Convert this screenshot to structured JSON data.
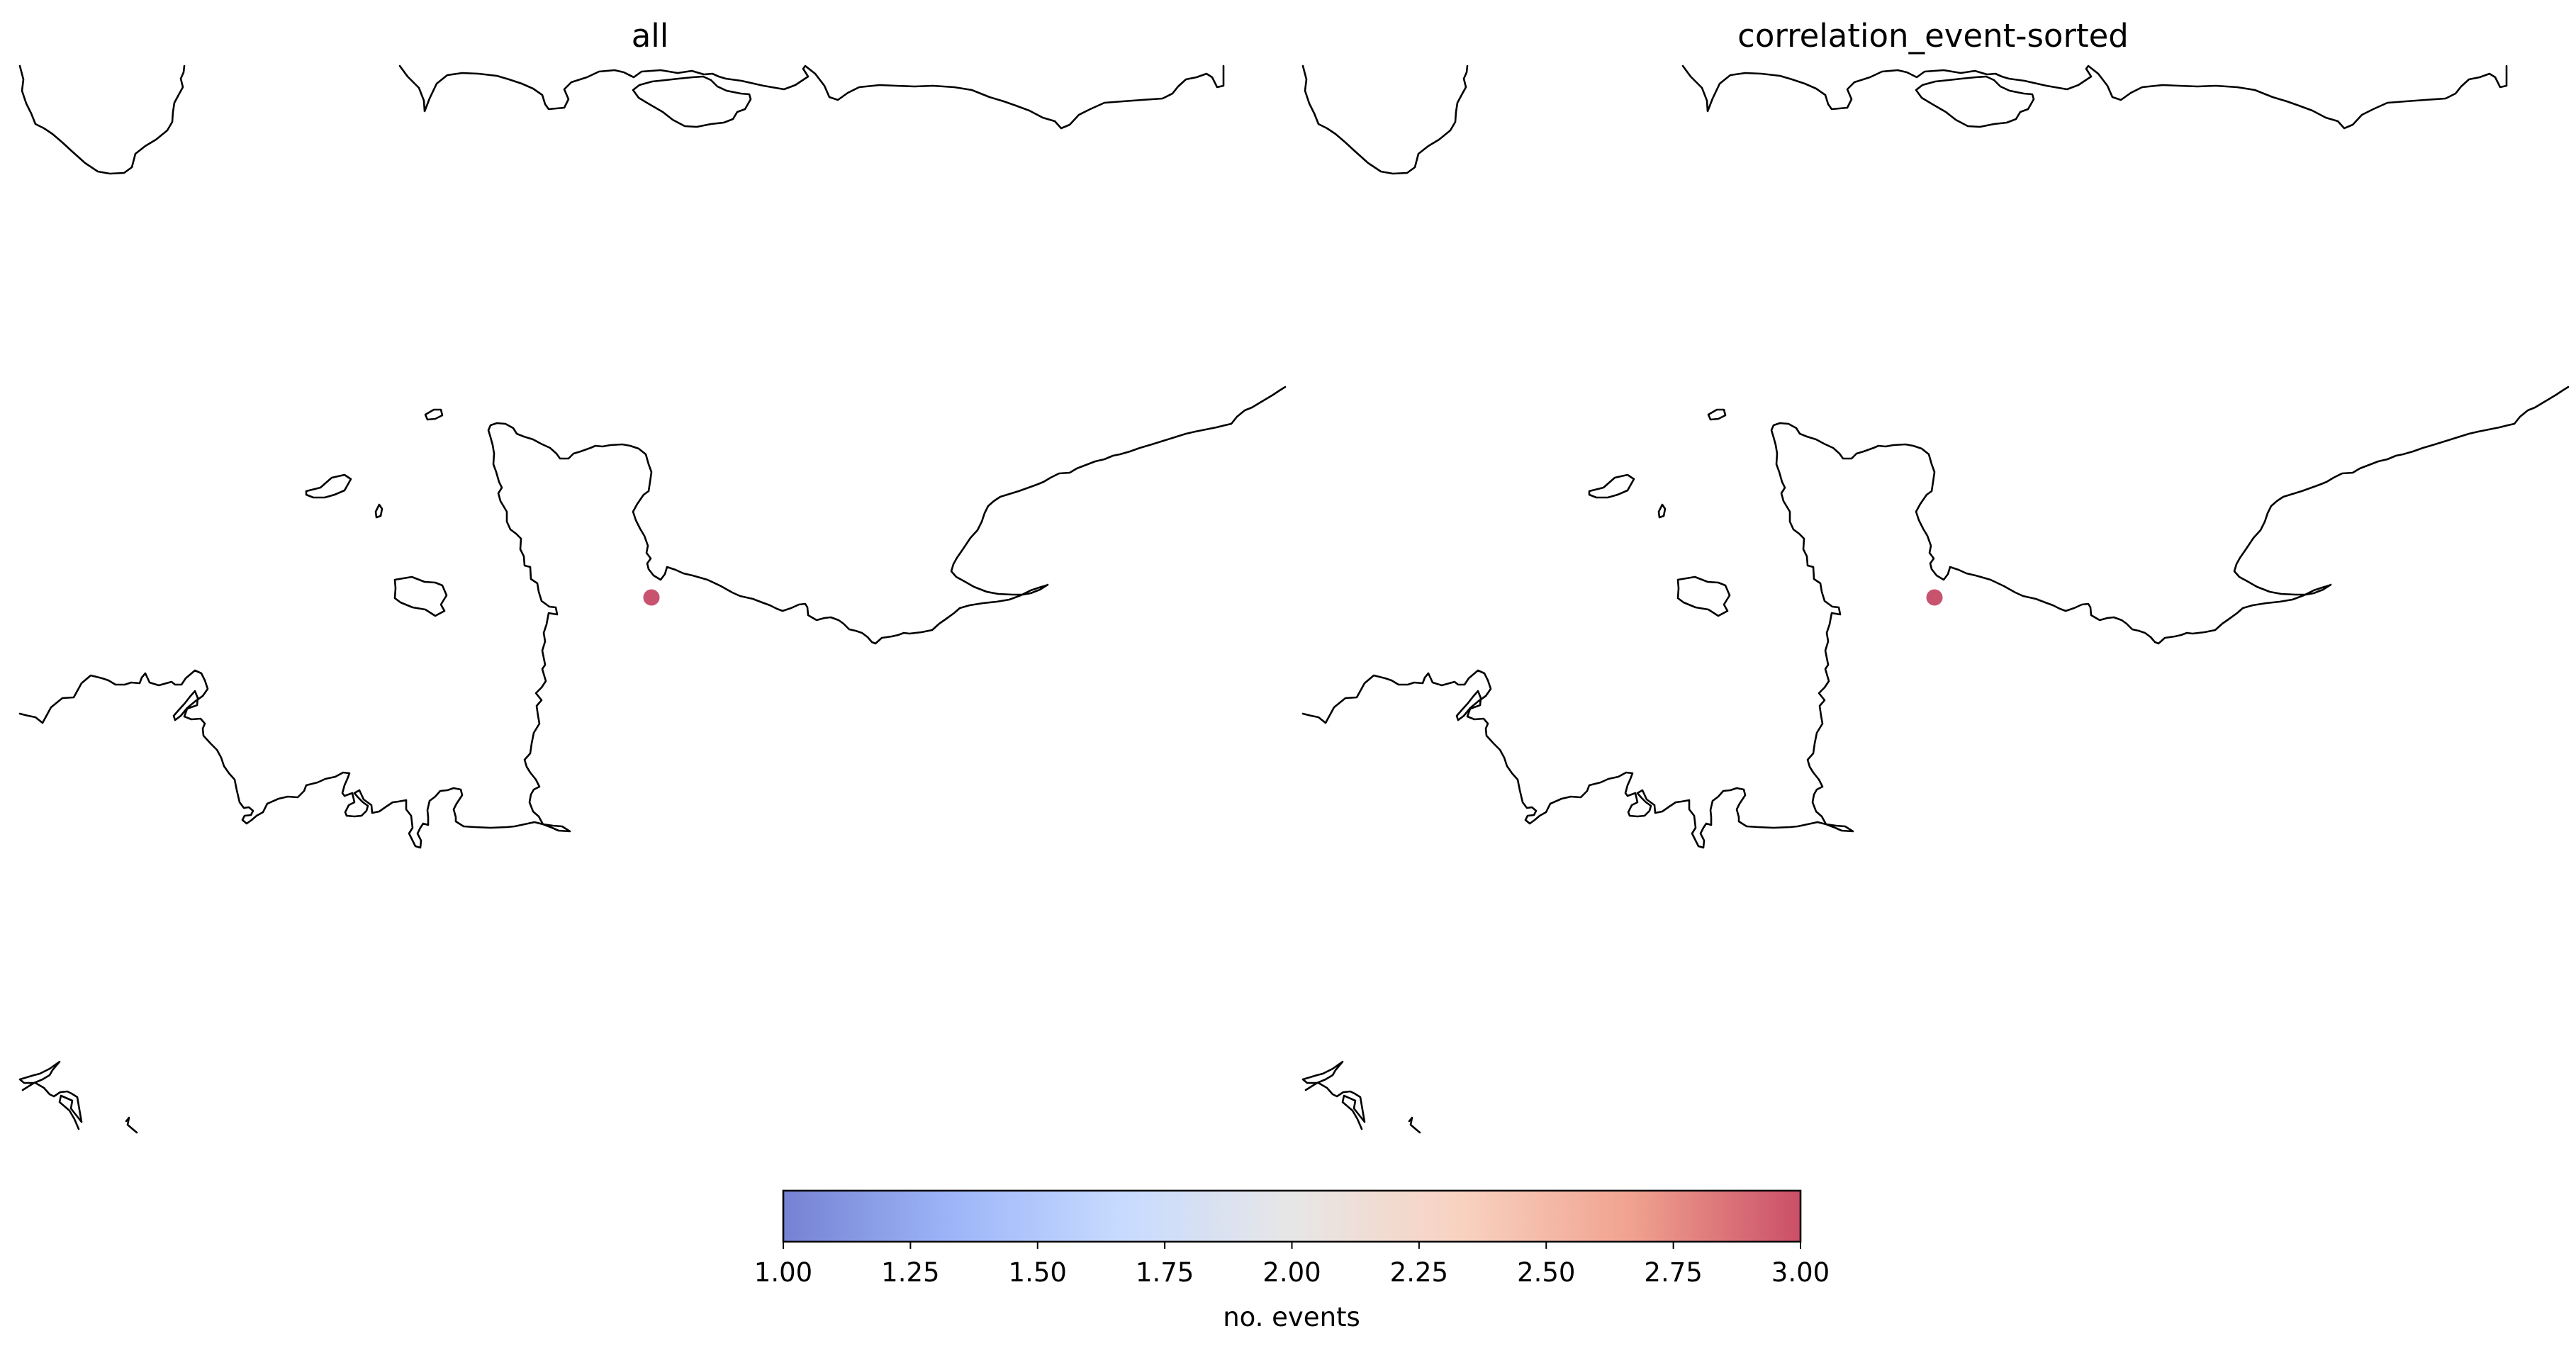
{
  "panels": [
    {
      "title": "all",
      "events": [
        {
          "count": 3
        }
      ]
    },
    {
      "title": "correlation_event-sorted",
      "events": [
        {
          "count": 3
        }
      ]
    }
  ],
  "colorbar": {
    "label": "no. events",
    "colormap": "coolwarm",
    "alpha": 0.7,
    "vmin": 1.0,
    "vmax": 3.0,
    "ticks": [
      "1.00",
      "1.25",
      "1.50",
      "1.75",
      "2.00",
      "2.25",
      "2.50",
      "2.75",
      "3.00"
    ],
    "gradient_colors": [
      "#3b4cc0",
      "#7396f5",
      "#b0cbff",
      "#dddcdc",
      "#f6bfa6",
      "#ea7b60",
      "#b40426"
    ]
  },
  "marker_color": "#c8536e"
}
